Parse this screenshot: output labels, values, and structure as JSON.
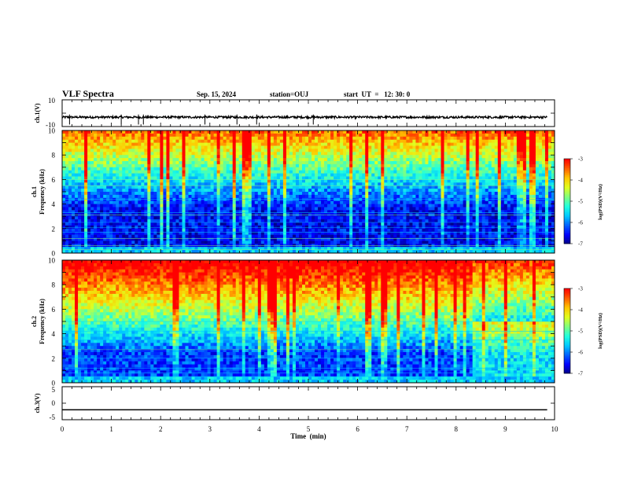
{
  "header": {
    "title": "VLF Spectra",
    "date": "Sep. 15, 2024",
    "station": "station=OUJ",
    "start": "start  UT  =   12: 30: 0"
  },
  "colors": {
    "axis": "#000000",
    "trace": "#000000",
    "colormap": [
      "#00007f",
      "#0000ff",
      "#0060ff",
      "#00c8ff",
      "#20ffdf",
      "#7fff7f",
      "#dfff20",
      "#ffc800",
      "#ff6000",
      "#ff0000",
      "#ffffff"
    ]
  },
  "chart_data": [
    {
      "type": "line",
      "name": "ch1-waveform",
      "ylabel": "ch.1(V)",
      "ylim": [
        -10,
        10
      ],
      "yticks": [
        "10",
        "-10"
      ],
      "xlim": [
        0,
        10
      ],
      "baseline": -3,
      "description_values": {
        "mean_level": -3,
        "spike_times_min": [
          0.15,
          1.2,
          1.55,
          1.65,
          2.9,
          3.55,
          3.95,
          5.1
        ]
      }
    },
    {
      "type": "heatmap",
      "name": "ch1-spectrogram",
      "ylabel": "ch.1\nFrequency (kHz)",
      "ylabel_line1": "ch.1",
      "ylabel_line2": "Frequency (kHz)",
      "ylim": [
        0,
        10
      ],
      "yticks": [
        "0",
        "2",
        "4",
        "6",
        "8",
        "10"
      ],
      "xlim": [
        0,
        10
      ],
      "colorbar": {
        "label": "log(PSD)(V²/Hz)",
        "range": [
          -7,
          -3
        ],
        "ticks": [
          "-3",
          "-4",
          "-5",
          "-6",
          "-7"
        ]
      }
    },
    {
      "type": "heatmap",
      "name": "ch2-spectrogram",
      "ylabel": "ch.2\nFrequency (kHz)",
      "ylabel_line1": "ch.2",
      "ylabel_line2": "Frequency (kHz)",
      "ylim": [
        0,
        10
      ],
      "yticks": [
        "0",
        "2",
        "4",
        "6",
        "8",
        "10"
      ],
      "xlim": [
        0,
        10
      ],
      "colorbar": {
        "label": "log(PSD)(V²/Hz)",
        "range": [
          -7,
          -3
        ],
        "ticks": [
          "-3",
          "-4",
          "-5",
          "-6",
          "-7"
        ]
      }
    },
    {
      "type": "line",
      "name": "ch3-waveform",
      "ylabel": "ch.3(V)",
      "ylim": [
        -5,
        5
      ],
      "yticks": [
        "5",
        "0",
        "-5"
      ],
      "xlim": [
        0,
        10
      ],
      "baseline": -2,
      "xlabel": "Time  (min)",
      "xticks": [
        "0",
        "1",
        "2",
        "3",
        "4",
        "5",
        "6",
        "7",
        "8",
        "9",
        "10"
      ]
    }
  ]
}
